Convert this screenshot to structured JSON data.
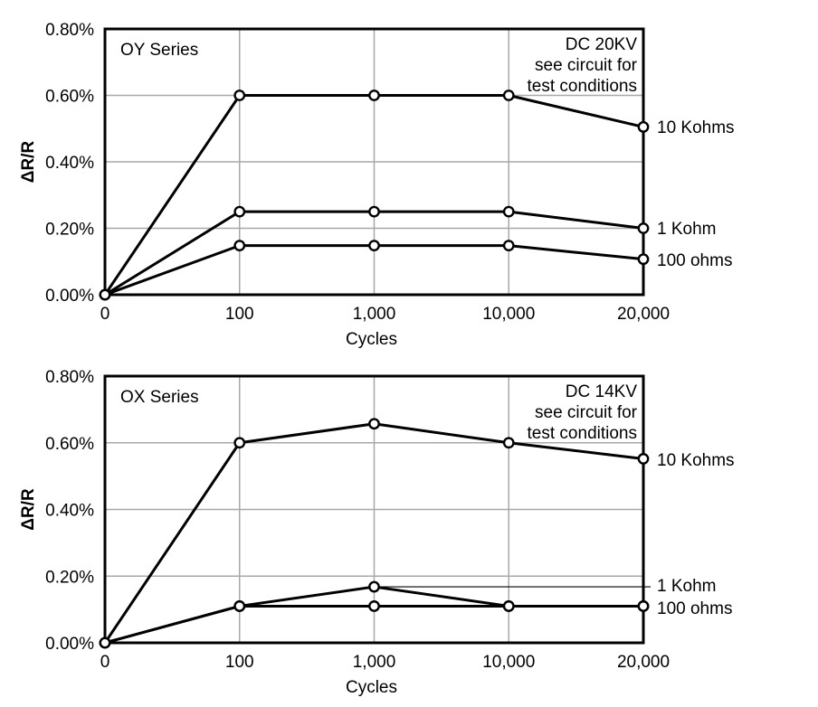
{
  "chart_data": [
    {
      "type": "line",
      "series_label": "OY Series",
      "note": [
        "DC 20KV",
        "see circuit for",
        "test conditions"
      ],
      "categories": [
        "0",
        "100",
        "1,000",
        "10,000",
        "20,000"
      ],
      "xlabel": "Cycles",
      "ylabel": "ΔR/R",
      "ylim": [
        0,
        0.8
      ],
      "yticks": [
        "0.00%",
        "0.20%",
        "0.40%",
        "0.60%",
        "0.80%"
      ],
      "grid": true,
      "series": [
        {
          "name": "10 Kohms",
          "values": [
            0,
            0.6,
            0.6,
            0.6,
            0.505
          ]
        },
        {
          "name": "1 Kohm",
          "values": [
            0,
            0.25,
            0.25,
            0.25,
            0.2
          ]
        },
        {
          "name": "100 ohms",
          "values": [
            0,
            0.148,
            0.148,
            0.148,
            0.107
          ]
        }
      ]
    },
    {
      "type": "line",
      "series_label": "OX Series",
      "note": [
        "DC 14KV",
        "see circuit for",
        "test conditions"
      ],
      "categories": [
        "0",
        "100",
        "1,000",
        "10,000",
        "20,000"
      ],
      "xlabel": "Cycles",
      "ylabel": "ΔR/R",
      "ylim": [
        0,
        0.8
      ],
      "yticks": [
        "0.00%",
        "0.20%",
        "0.40%",
        "0.60%",
        "0.80%"
      ],
      "grid": true,
      "series": [
        {
          "name": "10 Kohms",
          "values": [
            0,
            0.6,
            0.657,
            0.6,
            0.552
          ]
        },
        {
          "name": "1 Kohm",
          "values": [
            0,
            0.11,
            0.168,
            0.11,
            0.11
          ]
        },
        {
          "name": "100 ohms",
          "values": [
            0,
            0.11,
            0.11,
            0.11,
            0.11
          ]
        }
      ]
    }
  ]
}
